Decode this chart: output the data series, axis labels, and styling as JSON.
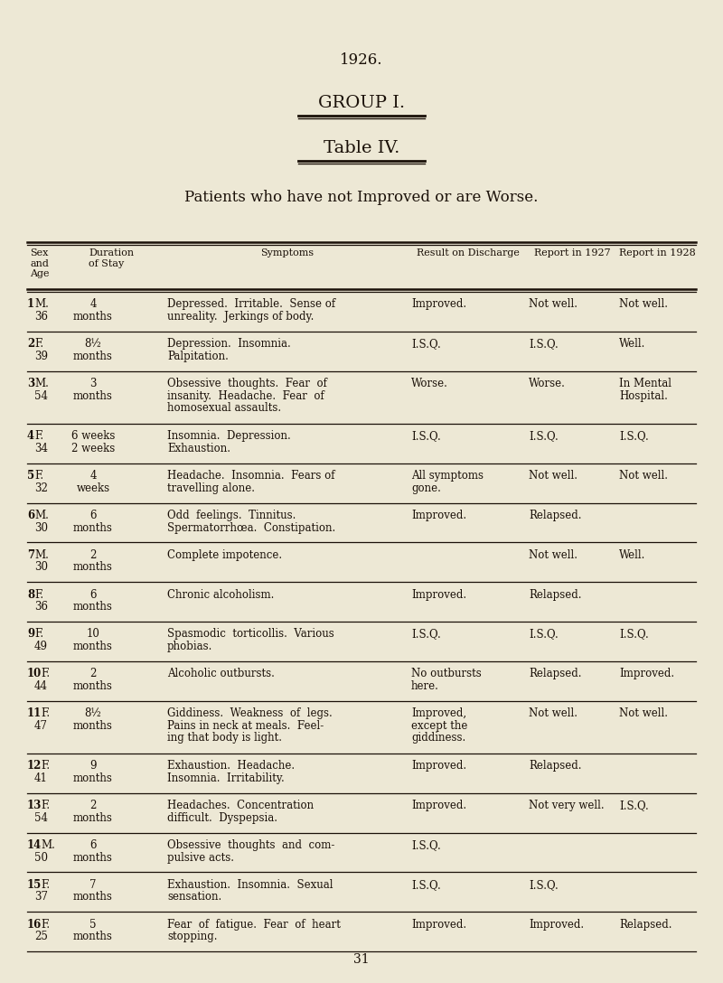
{
  "bg_color": "#ede8d5",
  "text_color": "#1a1008",
  "title_year": "1926.",
  "title_group": "GROUP I.",
  "title_table": "Table IV.",
  "subtitle": "Patients who have not Improved or are Worse.",
  "page_number": "31",
  "rows": [
    {
      "num": "1",
      "sex": "M.",
      "age": "36",
      "duration": "4\nmonths",
      "symptoms": "Depressed.  Irritable.  Sense of\nunreality.  Jerkings of body.",
      "result": "Improved.",
      "rep1927": "Not well.",
      "rep1928": "Not well."
    },
    {
      "num": "2",
      "sex": "F.",
      "age": "39",
      "duration": "8½\nmonths",
      "symptoms": "Depression.  Insomnia.\nPalpitation.",
      "result": "I.S.Q.",
      "rep1927": "I.S.Q.",
      "rep1928": "Well."
    },
    {
      "num": "3",
      "sex": "M.",
      "age": "54",
      "duration": "3\nmonths",
      "symptoms": "Obsessive  thoughts.  Fear  of\ninsanity.  Headache.  Fear  of\nhomosexual assaults.",
      "result": "Worse.",
      "rep1927": "Worse.",
      "rep1928": "In Mental\nHospital."
    },
    {
      "num": "4",
      "sex": "F.",
      "age": "34",
      "duration": "6 weeks\n2 weeks",
      "symptoms": "Insomnia.  Depression.\nExhaustion.",
      "result": "I.S.Q.",
      "rep1927": "I.S.Q.",
      "rep1928": "I.S.Q."
    },
    {
      "num": "5",
      "sex": "F.",
      "age": "32",
      "duration": "4\nweeks",
      "symptoms": "Headache.  Insomnia.  Fears of\ntravelling alone.",
      "result": "All symptoms\ngone.",
      "rep1927": "Not well.",
      "rep1928": "Not well."
    },
    {
      "num": "6",
      "sex": "M.",
      "age": "30",
      "duration": "6\nmonths",
      "symptoms": "Odd  feelings.  Tinnitus.\nSpermatorrhœa.  Constipation.",
      "result": "Improved.",
      "rep1927": "Relapsed.",
      "rep1928": ""
    },
    {
      "num": "7",
      "sex": "M.",
      "age": "30",
      "duration": "2\nmonths",
      "symptoms": "Complete impotence.",
      "result": "",
      "rep1927": "Not well.",
      "rep1928": "Well."
    },
    {
      "num": "8",
      "sex": "F.",
      "age": "36",
      "duration": "6\nmonths",
      "symptoms": "Chronic alcoholism.",
      "result": "Improved.",
      "rep1927": "Relapsed.",
      "rep1928": ""
    },
    {
      "num": "9",
      "sex": "F.",
      "age": "49",
      "duration": "10\nmonths",
      "symptoms": "Spasmodic  torticollis.  Various\nphobias.",
      "result": "I.S.Q.",
      "rep1927": "I.S.Q.",
      "rep1928": "I.S.Q."
    },
    {
      "num": "10",
      "sex": "F.",
      "age": "44",
      "duration": "2\nmonths",
      "symptoms": "Alcoholic outbursts.",
      "result": "No outbursts\nhere.",
      "rep1927": "Relapsed.",
      "rep1928": "Improved."
    },
    {
      "num": "11",
      "sex": "F.",
      "age": "47",
      "duration": "8½\nmonths",
      "symptoms": "Giddiness.  Weakness  of  legs.\nPains in neck at meals.  Feel-\ning that body is light.",
      "result": "Improved,\nexcept the\ngiddiness.",
      "rep1927": "Not well.",
      "rep1928": "Not well."
    },
    {
      "num": "12",
      "sex": "F.",
      "age": "41",
      "duration": "9\nmonths",
      "symptoms": "Exhaustion.  Headache.\nInsomnia.  Irritability.",
      "result": "Improved.",
      "rep1927": "Relapsed.",
      "rep1928": ""
    },
    {
      "num": "13",
      "sex": "F.",
      "age": "54",
      "duration": "2\nmonths",
      "symptoms": "Headaches.  Concentration\ndifficult.  Dyspepsia.",
      "result": "Improved.",
      "rep1927": "Not very well.",
      "rep1928": "I.S.Q."
    },
    {
      "num": "14",
      "sex": "M.",
      "age": "50",
      "duration": "6\nmonths",
      "symptoms": "Obsessive  thoughts  and  com-\npulsive acts.",
      "result": "I.S.Q.",
      "rep1927": "",
      "rep1928": ""
    },
    {
      "num": "15",
      "sex": "F.",
      "age": "37",
      "duration": "7\nmonths",
      "symptoms": "Exhaustion.  Insomnia.  Sexual\nsensation.",
      "result": "I.S.Q.",
      "rep1927": "I.S.Q.",
      "rep1928": ""
    },
    {
      "num": "16",
      "sex": "F.",
      "age": "25",
      "duration": "5\nmonths",
      "symptoms": "Fear  of  fatigue.  Fear  of  heart\nstopping.",
      "result": "Improved.",
      "rep1927": "Improved.",
      "rep1928": "Relapsed."
    }
  ]
}
